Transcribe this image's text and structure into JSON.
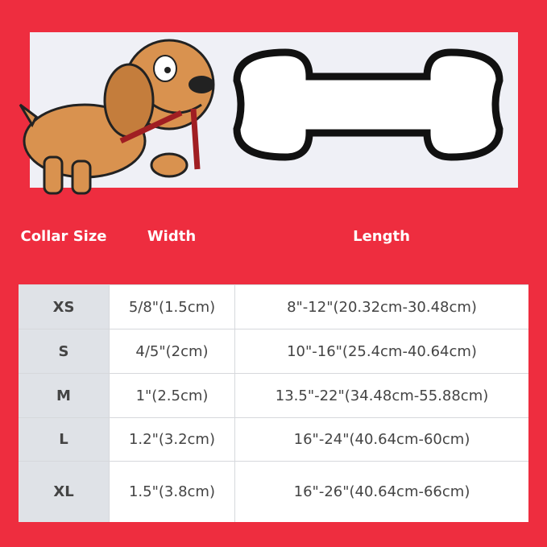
{
  "header": {
    "collar_size": "Collar Size",
    "width": "Width",
    "length": "Length"
  },
  "rows": [
    {
      "size": "XS",
      "width": "5/8\"(1.5cm)",
      "length": "8\"-12\"(20.32cm-30.48cm)"
    },
    {
      "size": "S",
      "width": "4/5\"(2cm)",
      "length": "10\"-16\"(25.4cm-40.64cm)"
    },
    {
      "size": "M",
      "width": "1\"(2.5cm)",
      "length": "13.5\"-22\"(34.48cm-55.88cm)"
    },
    {
      "size": "L",
      "width": "1.2\"(3.2cm)",
      "length": "16\"-24\"(40.64cm-60cm)"
    },
    {
      "size": "XL",
      "width": "1.5\"(3.8cm)",
      "length": "16\"-26\"(40.64cm-66cm)"
    }
  ],
  "colors": {
    "background": "#ee2d3f",
    "banner": "#eff0f6",
    "size_cell": "#dfe2e7",
    "text": "#444444"
  }
}
